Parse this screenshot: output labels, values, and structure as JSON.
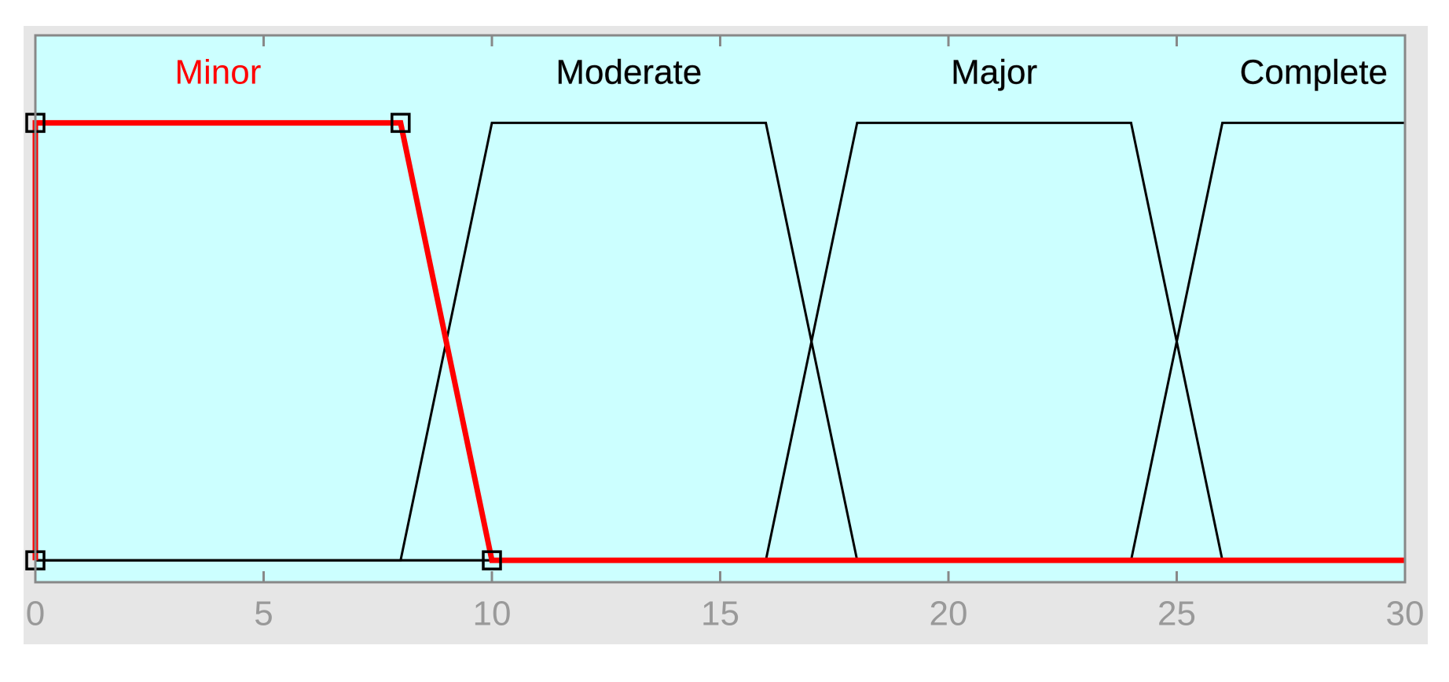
{
  "chart_data": {
    "type": "line",
    "xlim": [
      0,
      30
    ],
    "ylim": [
      -0.05,
      1.2
    ],
    "xticks": [
      0,
      5,
      10,
      15,
      20,
      25,
      30
    ],
    "series": [
      {
        "name": "Minor",
        "color": "#ff0000",
        "selected": true,
        "x": [
          0,
          0,
          8,
          10,
          30
        ],
        "values": [
          0,
          1,
          1,
          0,
          0
        ]
      },
      {
        "name": "Moderate",
        "color": "#000000",
        "x": [
          0,
          8,
          10,
          16,
          18,
          30
        ],
        "values": [
          0,
          0,
          1,
          1,
          0,
          0
        ]
      },
      {
        "name": "Major",
        "color": "#000000",
        "x": [
          0,
          16,
          18,
          24,
          26,
          30
        ],
        "values": [
          0,
          0,
          1,
          1,
          0,
          0
        ]
      },
      {
        "name": "Complete",
        "color": "#000000",
        "x": [
          0,
          24,
          26,
          30
        ],
        "values": [
          0,
          0,
          1,
          1
        ]
      }
    ]
  }
}
